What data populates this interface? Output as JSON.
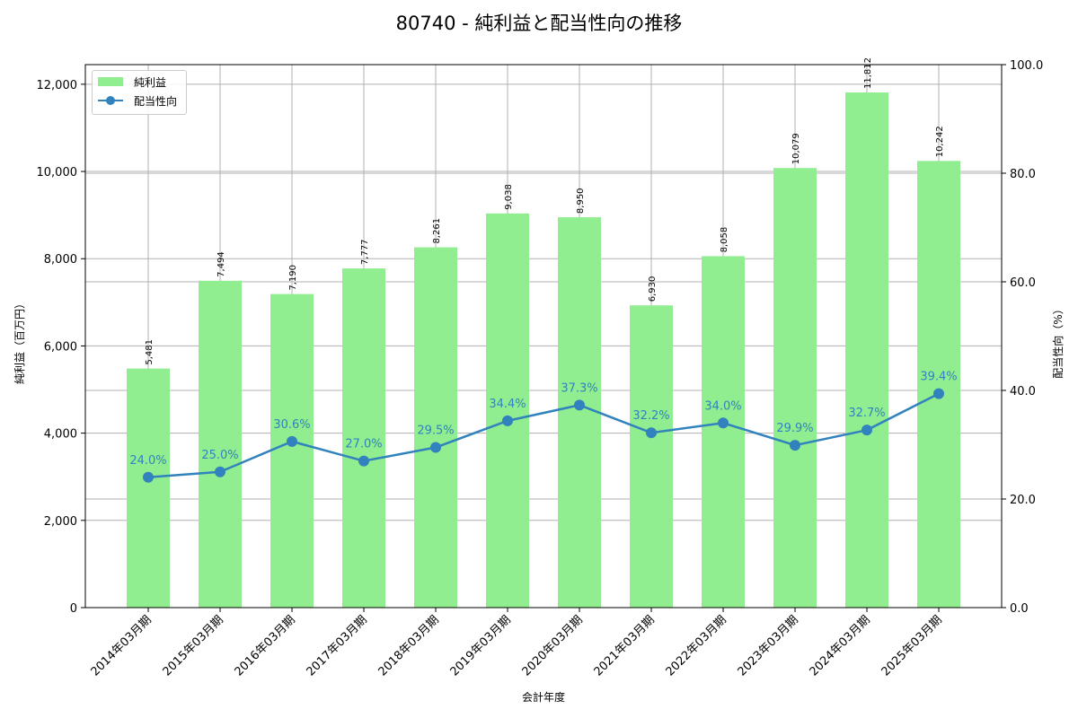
{
  "chart_data": {
    "type": "bar",
    "title": "80740 - 純利益と配当性向の推移",
    "xlabel": "会計年度",
    "ylabel": "純利益（百万円）",
    "ylabel_right": "配当性向（%）",
    "categories": [
      "2014年03月期",
      "2015年03月期",
      "2016年03月期",
      "2017年03月期",
      "2018年03月期",
      "2019年03月期",
      "2020年03月期",
      "2021年03月期",
      "2022年03月期",
      "2023年03月期",
      "2024年03月期",
      "2025年03月期"
    ],
    "series": [
      {
        "name": "純利益",
        "type": "bar",
        "axis": "left",
        "color": "#90ee90",
        "values": [
          5481,
          7494,
          7190,
          7777,
          8261,
          9038,
          8950,
          6930,
          8058,
          10079,
          11812,
          10242
        ],
        "labels": [
          "5,481",
          "7,494",
          "7,190",
          "7,777",
          "8,261",
          "9,038",
          "8,950",
          "6,930",
          "8,058",
          "10,079",
          "11,812",
          "10,242"
        ]
      },
      {
        "name": "配当性向",
        "type": "line",
        "axis": "right",
        "color": "#3182bd",
        "values": [
          24.0,
          25.0,
          30.6,
          27.0,
          29.5,
          34.4,
          37.3,
          32.2,
          34.0,
          29.9,
          32.7,
          39.4
        ],
        "labels": [
          "24.0%",
          "25.0%",
          "30.6%",
          "27.0%",
          "29.5%",
          "34.4%",
          "37.3%",
          "32.2%",
          "34.0%",
          "29.9%",
          "32.7%",
          "39.4%"
        ]
      }
    ],
    "ylim": [
      0,
      12450
    ],
    "ylim_right": [
      0,
      100
    ],
    "yticks": [
      "0",
      "2,000",
      "4,000",
      "6,000",
      "8,000",
      "10,000",
      "12,000"
    ],
    "yticks_right": [
      "0.0",
      "20.0",
      "40.0",
      "60.0",
      "80.0",
      "100.0"
    ],
    "grid": true,
    "legend_position": "upper left"
  },
  "legend": {
    "bar_label": "純利益",
    "line_label": "配当性向"
  }
}
